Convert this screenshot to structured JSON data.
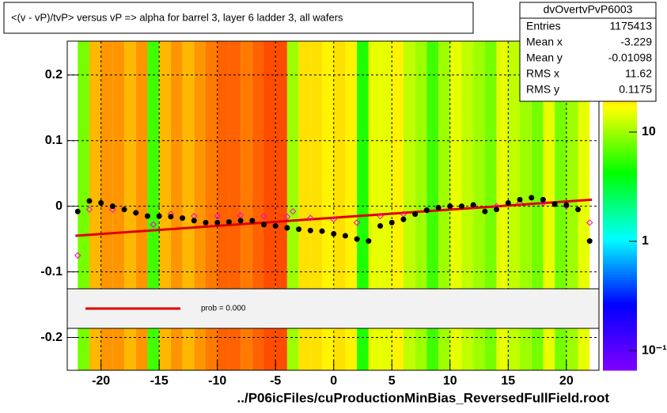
{
  "chart_data": {
    "type": "heatmap-profile",
    "title": "<(v - vP)/tvP>  versus   vP => alpha for barrel 3, layer 6 ladder 3, all wafers",
    "x_label": "../P06icFiles/cuProductionMinBias_ReversedFullField.root",
    "xlim": [
      -22.9,
      22.8
    ],
    "ylim": [
      -0.25,
      0.2516
    ],
    "xticks": [
      -20,
      -15,
      -10,
      -5,
      0,
      5,
      10,
      15,
      20
    ],
    "yticks": [
      0.2,
      0.1,
      0,
      -0.1,
      -0.2
    ],
    "grid": true,
    "heatmap": {
      "bins": [
        -22,
        -21,
        -20,
        -19,
        -18,
        -17,
        -16,
        -15,
        -14,
        -13,
        -12,
        -11,
        -10,
        -9,
        -8,
        -7,
        -6,
        -5,
        -4,
        -3,
        -2,
        -1,
        0,
        1,
        2,
        3,
        4,
        5,
        6,
        7,
        8,
        9,
        10,
        11,
        12,
        13,
        14,
        15,
        16,
        17,
        18,
        19,
        20,
        21,
        22
      ],
      "values": [
        8,
        25,
        30,
        30,
        25,
        30,
        6,
        25,
        30,
        25,
        30,
        35,
        40,
        40,
        35,
        40,
        45,
        45,
        10,
        20,
        20,
        18,
        20,
        18,
        5,
        15,
        15,
        18,
        12,
        10,
        6,
        10,
        15,
        12,
        10,
        8,
        15,
        12,
        10,
        8,
        15,
        8,
        10,
        15
      ],
      "zlim": [
        0.066,
        68
      ],
      "zticks": [
        10,
        1,
        {
          "value": 0.1,
          "label": "10⁻¹"
        }
      ],
      "log_z": true
    },
    "profile": {
      "color": "#000000",
      "x": [
        -22,
        -21,
        -20,
        -19,
        -18,
        -17,
        -16,
        -15,
        -14,
        -13,
        -12,
        -11,
        -10,
        -9,
        -8,
        -7,
        -6,
        -5,
        -4,
        -3,
        -2,
        -1,
        0,
        1,
        2,
        3,
        4,
        5,
        6,
        7,
        8,
        9,
        10,
        11,
        12,
        13,
        14,
        15,
        16,
        17,
        18,
        19,
        20,
        21,
        22
      ],
      "values": [
        -0.008,
        0.008,
        0.005,
        0.0,
        -0.005,
        -0.01,
        -0.015,
        -0.015,
        -0.016,
        -0.018,
        -0.022,
        -0.025,
        -0.025,
        -0.024,
        -0.022,
        -0.022,
        -0.028,
        -0.03,
        -0.033,
        -0.035,
        -0.037,
        -0.038,
        -0.042,
        -0.045,
        -0.05,
        -0.053,
        -0.03,
        -0.025,
        -0.02,
        -0.012,
        -0.006,
        -0.002,
        0.0,
        0.0,
        0.002,
        -0.008,
        -0.005,
        0.005,
        0.01,
        0.013,
        0.01,
        0.003,
        0.002,
        -0.005,
        -0.053
      ]
    },
    "means": {
      "color": "#ff00cc",
      "x": [
        -22,
        -21,
        -19,
        -17,
        -15.5,
        -14,
        -12,
        -10,
        -8,
        -6,
        -4,
        -3.5,
        -2,
        0,
        2,
        4,
        6,
        8,
        10,
        12,
        14,
        16,
        18,
        20,
        22
      ],
      "values": [
        -0.075,
        -0.005,
        -0.005,
        -0.01,
        -0.028,
        -0.012,
        -0.015,
        -0.015,
        -0.014,
        -0.015,
        -0.016,
        -0.008,
        -0.018,
        -0.02,
        -0.025,
        -0.015,
        -0.012,
        -0.006,
        0.0,
        0.0,
        0.0,
        0.005,
        0.005,
        0.0,
        -0.025
      ]
    },
    "fit": {
      "color": "#dd0000",
      "x": [
        -22.2,
        22.2
      ],
      "values": [
        -0.045,
        0.01
      ],
      "legend_label": "prob = 0.000"
    },
    "stats": {
      "title": "dvOvertvPvP6003",
      "rows": [
        [
          "Entries",
          "1175413"
        ],
        [
          "Mean x",
          "-3.229"
        ],
        [
          "Mean y",
          "-0.01098"
        ],
        [
          "RMS x",
          "11.62"
        ],
        [
          "RMS y",
          "0.1175"
        ]
      ]
    }
  }
}
